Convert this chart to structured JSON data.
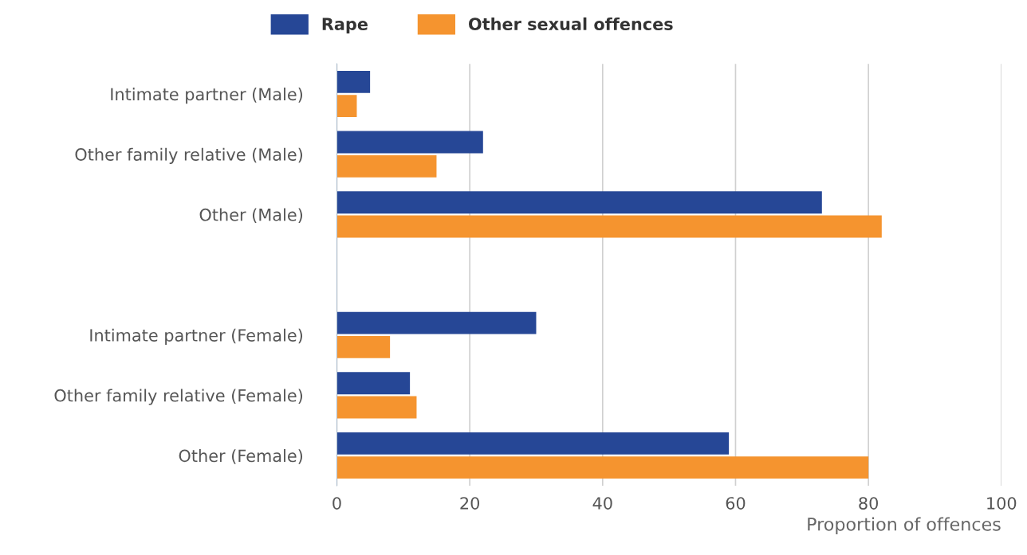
{
  "chart_data": {
    "type": "bar",
    "orientation": "horizontal",
    "xlabel": "Proportion of offences",
    "categories": [
      "Intimate partner (Male)",
      "Other family relative (Male)",
      "Other (Male)",
      null,
      "Intimate partner (Female)",
      "Other family relative (Female)",
      "Other (Female)"
    ],
    "series": [
      {
        "name": "Rape",
        "color": "#264796",
        "values": [
          5,
          22,
          73,
          null,
          30,
          11,
          59
        ]
      },
      {
        "name": "Other sexual offences",
        "color": "#f5942f",
        "values": [
          3,
          15,
          82,
          null,
          8,
          12,
          80
        ]
      }
    ],
    "xlim": [
      0,
      100
    ],
    "xticks": [
      0,
      20,
      40,
      60,
      80,
      100
    ],
    "grid": "x",
    "legend": "top"
  }
}
